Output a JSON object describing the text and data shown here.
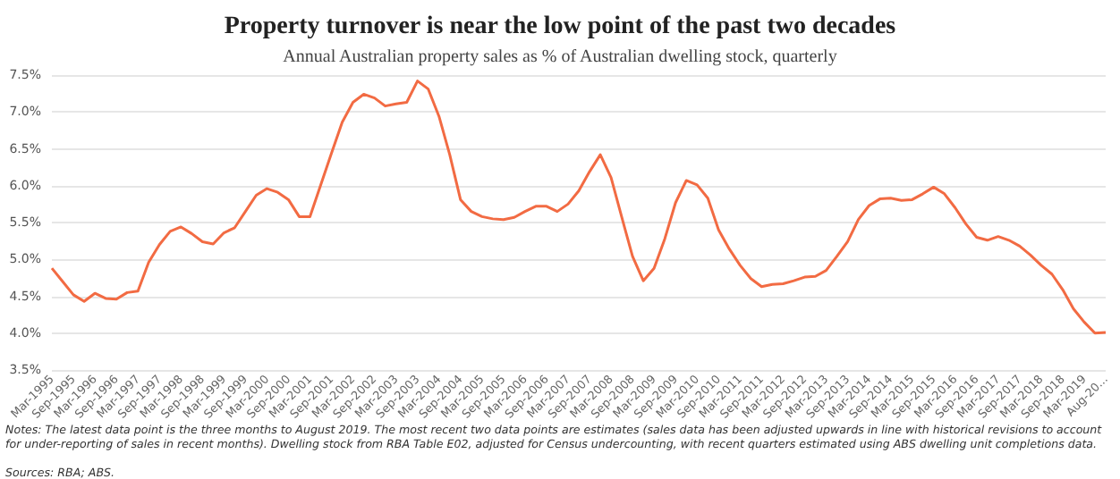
{
  "chart_data": {
    "type": "line",
    "title": "Property turnover is near the low point of the past two decades",
    "subtitle": "Annual Australian property sales as % of Australian dwelling stock, quarterly",
    "annotations": [
      "Notes: The latest data point is the three months to August 2019. The most recent two data points are estimates (sales data has been adjusted upwards in line with historical revisions to account for under-reporting of sales in recent months). Dwelling stock from RBA Table E02, adjusted for Census undercounting, with recent quarters estimated using ABS dwelling unit completions data.",
      "Sources: RBA; ABS."
    ],
    "categories": [
      "Mar-1995",
      null,
      "Sep-1995",
      null,
      "Mar-1996",
      null,
      "Sep-1996",
      null,
      "Mar-1997",
      null,
      "Sep-1997",
      null,
      "Mar-1998",
      null,
      "Sep-1998",
      null,
      "Mar-1999",
      null,
      "Sep-1999",
      null,
      "Mar-2000",
      null,
      "Sep-2000",
      null,
      "Mar-2001",
      null,
      "Sep-2001",
      null,
      "Mar-2002",
      null,
      "Sep-2002",
      null,
      "Mar-2003",
      null,
      "Sep-2003",
      null,
      "Mar-2004",
      null,
      "Sep-2004",
      null,
      "Mar-2005",
      null,
      "Sep-2005",
      null,
      "Mar-2006",
      null,
      "Sep-2006",
      null,
      "Mar-2007",
      null,
      "Sep-2007",
      null,
      "Mar-2008",
      null,
      "Sep-2008",
      null,
      "Mar-2009",
      null,
      "Sep-2009",
      null,
      "Mar-2010",
      null,
      "Sep-2010",
      null,
      "Mar-2011",
      null,
      "Sep-2011",
      null,
      "Mar-2012",
      null,
      "Sep-2012",
      null,
      "Mar-2013",
      null,
      "Sep-2013",
      null,
      "Mar-2014",
      null,
      "Sep-2014",
      null,
      "Mar-2015",
      null,
      "Sep-2015",
      null,
      "Mar-2016",
      null,
      "Sep-2016",
      null,
      "Mar-2017",
      null,
      "Sep-2017",
      null,
      "Mar-2018",
      null,
      "Sep-2018",
      null,
      "Mar-2019",
      null,
      "Aug-20..."
    ],
    "series": [
      {
        "color": "#f26b43",
        "values": [
          4.88,
          4.7,
          4.52,
          4.43,
          4.54,
          4.47,
          4.46,
          4.55,
          4.57,
          4.96,
          5.2,
          5.38,
          5.44,
          5.35,
          5.24,
          5.21,
          5.36,
          5.43,
          5.65,
          5.87,
          5.96,
          5.91,
          5.81,
          5.58,
          5.58,
          6.01,
          6.44,
          6.86,
          7.13,
          7.24,
          7.19,
          7.08,
          7.11,
          7.13,
          7.42,
          7.31,
          6.94,
          6.42,
          5.81,
          5.65,
          5.58,
          5.55,
          5.54,
          5.57,
          5.65,
          5.72,
          5.72,
          5.65,
          5.75,
          5.93,
          6.19,
          6.42,
          6.11,
          5.57,
          5.04,
          4.71,
          4.88,
          5.28,
          5.77,
          6.07,
          6.01,
          5.83,
          5.4,
          5.14,
          4.92,
          4.74,
          4.63,
          4.66,
          4.67,
          4.71,
          4.76,
          4.77,
          4.85,
          5.04,
          5.24,
          5.54,
          5.73,
          5.82,
          5.83,
          5.8,
          5.81,
          5.89,
          5.98,
          5.89,
          5.7,
          5.48,
          5.3,
          5.26,
          5.31,
          5.26,
          5.18,
          5.06,
          4.92,
          4.8,
          4.59,
          4.33,
          4.15,
          4.0,
          4.01
        ]
      }
    ],
    "ylim": [
      3.5,
      7.5
    ],
    "yticks": [
      {
        "value": 3.5,
        "label": "3.5%"
      },
      {
        "value": 4,
        "label": "4.0%"
      },
      {
        "value": 4.5,
        "label": "4.5%"
      },
      {
        "value": 5,
        "label": "5.0%"
      },
      {
        "value": 5.5,
        "label": "5.5%"
      },
      {
        "value": 6,
        "label": "6.0%"
      },
      {
        "value": 6.5,
        "label": "6.5%"
      },
      {
        "value": 7,
        "label": "7.0%"
      },
      {
        "value": 7.5,
        "label": "7.5%"
      }
    ],
    "grid": "y",
    "marker": "none",
    "line_style": "solid"
  }
}
